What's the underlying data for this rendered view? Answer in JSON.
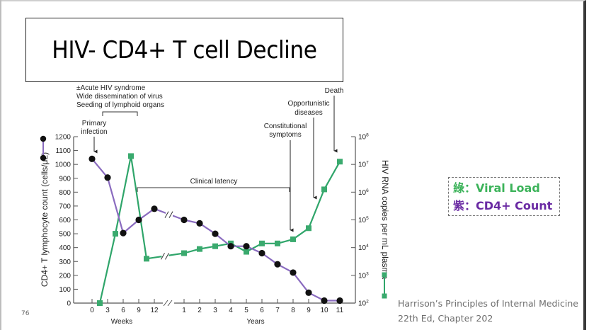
{
  "slide": {
    "title": "HIV- CD4+ T cell Decline",
    "page_number": "76",
    "citation_line1": "Harrison’s Principles of Internal Medicine",
    "citation_line2": "22th Ed, Chapter 202"
  },
  "legend": {
    "viral": {
      "label": "綠：Viral Load",
      "color": "#3cb35a"
    },
    "cd4": {
      "label": "紫：CD4+ Count",
      "color": "#6a2aa3"
    }
  },
  "annotations": {
    "acute_line1": "±Acute HIV syndrome",
    "acute_line2": "Wide dissemination of virus",
    "acute_line3": "Seeding of lymphoid organs",
    "primary_line1": "Primary",
    "primary_line2": "infection",
    "clinical_latency": "Clinical latency",
    "constitutional_line1": "Constitutional",
    "constitutional_line2": "symptoms",
    "opportunistic_line1": "Opportunistic",
    "opportunistic_line2": "diseases",
    "death": "Death"
  },
  "chart_data": {
    "type": "line",
    "title": "HIV- CD4+ T cell Decline",
    "x_groups": [
      {
        "label": "Weeks",
        "ticks": [
          "0",
          "3",
          "6",
          "9",
          "12"
        ]
      },
      {
        "label": "Years",
        "ticks": [
          "1",
          "2",
          "3",
          "4",
          "5",
          "6",
          "7",
          "8",
          "9",
          "10",
          "11"
        ]
      }
    ],
    "axis_break": "between week 12 and year 1",
    "left_axis": {
      "label": "CD4+ T lymphocyte count (cells/μL)",
      "range": [
        0,
        1200
      ],
      "ticks": [
        "0",
        "100",
        "200",
        "300",
        "400",
        "500",
        "600",
        "700",
        "800",
        "900",
        "1000",
        "1100",
        "1200"
      ]
    },
    "right_axis": {
      "label": "HIV RNA copies per mL plasma",
      "scale": "log10",
      "range_exponent": [
        2,
        8
      ],
      "ticks": [
        {
          "base": "10",
          "exp": "2"
        },
        {
          "base": "10",
          "exp": "3"
        },
        {
          "base": "10",
          "exp": "4"
        },
        {
          "base": "10",
          "exp": "5"
        },
        {
          "base": "10",
          "exp": "6"
        },
        {
          "base": "10",
          "exp": "7"
        },
        {
          "base": "10",
          "exp": "8"
        }
      ]
    },
    "series": [
      {
        "name": "CD4+ T lymphocyte count",
        "axis": "left",
        "line_color": "#8a6bbf",
        "marker": "circle",
        "marker_color": "#111111",
        "points": [
          {
            "unit": "week",
            "x": 0,
            "y": 1040
          },
          {
            "unit": "week",
            "x": 3,
            "y": 905
          },
          {
            "unit": "week",
            "x": 6,
            "y": 505
          },
          {
            "unit": "week",
            "x": 9,
            "y": 600
          },
          {
            "unit": "week",
            "x": 12,
            "y": 680
          },
          {
            "unit": "year",
            "x": 1,
            "y": 600
          },
          {
            "unit": "year",
            "x": 2,
            "y": 575
          },
          {
            "unit": "year",
            "x": 3,
            "y": 500
          },
          {
            "unit": "year",
            "x": 4,
            "y": 410
          },
          {
            "unit": "year",
            "x": 5,
            "y": 410
          },
          {
            "unit": "year",
            "x": 6,
            "y": 360
          },
          {
            "unit": "year",
            "x": 7,
            "y": 280
          },
          {
            "unit": "year",
            "x": 8,
            "y": 220
          },
          {
            "unit": "year",
            "x": 9,
            "y": 75
          },
          {
            "unit": "year",
            "x": 10,
            "y": 18
          },
          {
            "unit": "year",
            "x": 11,
            "y": 18
          }
        ]
      },
      {
        "name": "HIV RNA copies per mL plasma",
        "axis": "right",
        "line_color": "#2fa56a",
        "marker": "square",
        "marker_color": "#3aaa6e",
        "points": [
          {
            "unit": "week",
            "x": 1.5,
            "log10_y": 2.0
          },
          {
            "unit": "week",
            "x": 4.5,
            "log10_y": 4.5
          },
          {
            "unit": "week",
            "x": 7.5,
            "log10_y": 7.3
          },
          {
            "unit": "week",
            "x": 10.5,
            "log10_y": 3.6
          },
          {
            "unit": "year",
            "x": 1,
            "log10_y": 3.8
          },
          {
            "unit": "year",
            "x": 2,
            "log10_y": 3.95
          },
          {
            "unit": "year",
            "x": 3,
            "log10_y": 4.05
          },
          {
            "unit": "year",
            "x": 4,
            "log10_y": 4.15
          },
          {
            "unit": "year",
            "x": 5,
            "log10_y": 3.85
          },
          {
            "unit": "year",
            "x": 6,
            "log10_y": 4.15
          },
          {
            "unit": "year",
            "x": 7,
            "log10_y": 4.15
          },
          {
            "unit": "year",
            "x": 8,
            "log10_y": 4.3
          },
          {
            "unit": "year",
            "x": 9,
            "log10_y": 4.7
          },
          {
            "unit": "year",
            "x": 10,
            "log10_y": 6.1
          },
          {
            "unit": "year",
            "x": 11,
            "log10_y": 7.1
          }
        ]
      }
    ]
  }
}
